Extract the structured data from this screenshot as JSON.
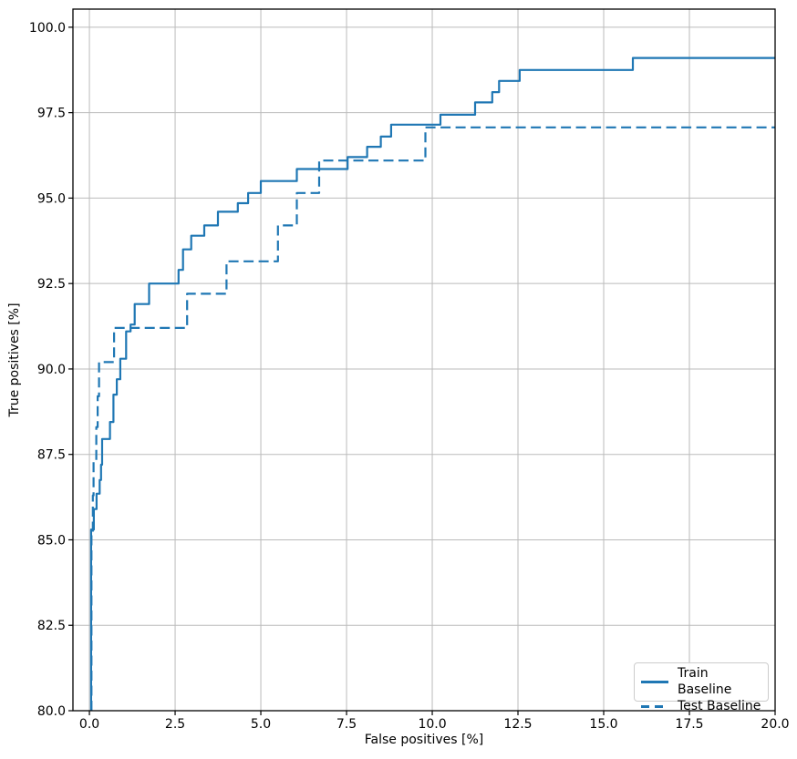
{
  "chart_data": {
    "type": "line",
    "title": "",
    "xlabel": "False positives [%]",
    "ylabel": "True positives [%]",
    "xlim": [
      -0.48,
      20.0
    ],
    "ylim": [
      80.0,
      100.53
    ],
    "grid": true,
    "grid_color": "#bbbbbb",
    "line_color": "#1f77b4",
    "legend": {
      "position": "lower right",
      "entries": [
        {
          "label": "Train Baseline",
          "style": "solid"
        },
        {
          "label": "Test Baseline",
          "style": "dashed"
        }
      ]
    },
    "xticks": [
      {
        "value": 0.0,
        "label": "0.0"
      },
      {
        "value": 2.5,
        "label": "2.5"
      },
      {
        "value": 5.0,
        "label": "5.0"
      },
      {
        "value": 7.5,
        "label": "7.5"
      },
      {
        "value": 10.0,
        "label": "10.0"
      },
      {
        "value": 12.5,
        "label": "12.5"
      },
      {
        "value": 15.0,
        "label": "15.0"
      },
      {
        "value": 17.5,
        "label": "17.5"
      },
      {
        "value": 20.0,
        "label": "20.0"
      }
    ],
    "yticks": [
      {
        "value": 80.0,
        "label": "80.0"
      },
      {
        "value": 82.5,
        "label": "82.5"
      },
      {
        "value": 85.0,
        "label": "85.0"
      },
      {
        "value": 87.5,
        "label": "87.5"
      },
      {
        "value": 90.0,
        "label": "90.0"
      },
      {
        "value": 92.5,
        "label": "92.5"
      },
      {
        "value": 95.0,
        "label": "95.0"
      },
      {
        "value": 97.5,
        "label": "97.5"
      },
      {
        "value": 100.0,
        "label": "100.0"
      }
    ],
    "series": [
      {
        "name": "Train Baseline",
        "style": "solid",
        "color": "#1f77b4",
        "points": [
          [
            0.05,
            80.0
          ],
          [
            0.05,
            85.3
          ],
          [
            0.13,
            85.3
          ],
          [
            0.13,
            85.9
          ],
          [
            0.21,
            85.9
          ],
          [
            0.21,
            86.35
          ],
          [
            0.3,
            86.35
          ],
          [
            0.3,
            86.75
          ],
          [
            0.34,
            86.75
          ],
          [
            0.34,
            87.2
          ],
          [
            0.37,
            87.2
          ],
          [
            0.37,
            87.95
          ],
          [
            0.6,
            87.95
          ],
          [
            0.6,
            88.45
          ],
          [
            0.7,
            88.45
          ],
          [
            0.7,
            89.25
          ],
          [
            0.8,
            89.25
          ],
          [
            0.8,
            89.7
          ],
          [
            0.9,
            89.7
          ],
          [
            0.9,
            90.3
          ],
          [
            1.07,
            90.3
          ],
          [
            1.07,
            91.1
          ],
          [
            1.2,
            91.1
          ],
          [
            1.2,
            91.3
          ],
          [
            1.32,
            91.3
          ],
          [
            1.32,
            91.9
          ],
          [
            1.74,
            91.9
          ],
          [
            1.74,
            92.5
          ],
          [
            2.6,
            92.5
          ],
          [
            2.6,
            92.9
          ],
          [
            2.73,
            92.9
          ],
          [
            2.73,
            93.5
          ],
          [
            2.97,
            93.5
          ],
          [
            2.97,
            93.9
          ],
          [
            3.35,
            93.9
          ],
          [
            3.35,
            94.2
          ],
          [
            3.75,
            94.2
          ],
          [
            3.75,
            94.6
          ],
          [
            4.33,
            94.6
          ],
          [
            4.33,
            94.85
          ],
          [
            4.63,
            94.85
          ],
          [
            4.63,
            95.15
          ],
          [
            5.0,
            95.15
          ],
          [
            5.0,
            95.5
          ],
          [
            6.05,
            95.5
          ],
          [
            6.05,
            95.85
          ],
          [
            7.53,
            95.85
          ],
          [
            7.53,
            96.2
          ],
          [
            8.1,
            96.2
          ],
          [
            8.1,
            96.5
          ],
          [
            8.5,
            96.5
          ],
          [
            8.5,
            96.8
          ],
          [
            8.8,
            96.8
          ],
          [
            8.8,
            97.15
          ],
          [
            10.24,
            97.15
          ],
          [
            10.24,
            97.44
          ],
          [
            11.25,
            97.44
          ],
          [
            11.25,
            97.8
          ],
          [
            11.75,
            97.8
          ],
          [
            11.75,
            98.1
          ],
          [
            11.95,
            98.1
          ],
          [
            11.95,
            98.43
          ],
          [
            12.55,
            98.43
          ],
          [
            12.55,
            98.75
          ],
          [
            15.85,
            98.75
          ],
          [
            15.85,
            99.1
          ],
          [
            20.0,
            99.1
          ]
        ]
      },
      {
        "name": "Test Baseline",
        "style": "dashed",
        "color": "#1f77b4",
        "points": [
          [
            0.06,
            80.0
          ],
          [
            0.06,
            85.2
          ],
          [
            0.1,
            85.2
          ],
          [
            0.1,
            86.3
          ],
          [
            0.12,
            86.3
          ],
          [
            0.12,
            87.3
          ],
          [
            0.2,
            87.3
          ],
          [
            0.2,
            88.3
          ],
          [
            0.24,
            88.3
          ],
          [
            0.24,
            89.2
          ],
          [
            0.28,
            89.2
          ],
          [
            0.28,
            90.2
          ],
          [
            0.72,
            90.2
          ],
          [
            0.72,
            91.2
          ],
          [
            2.85,
            91.2
          ],
          [
            2.85,
            92.2
          ],
          [
            4.0,
            92.2
          ],
          [
            4.0,
            93.15
          ],
          [
            5.5,
            93.15
          ],
          [
            5.5,
            94.2
          ],
          [
            6.05,
            94.2
          ],
          [
            6.05,
            95.15
          ],
          [
            6.7,
            95.15
          ],
          [
            6.7,
            96.1
          ],
          [
            9.8,
            96.1
          ],
          [
            9.8,
            97.07
          ],
          [
            20.0,
            97.07
          ]
        ]
      }
    ]
  }
}
